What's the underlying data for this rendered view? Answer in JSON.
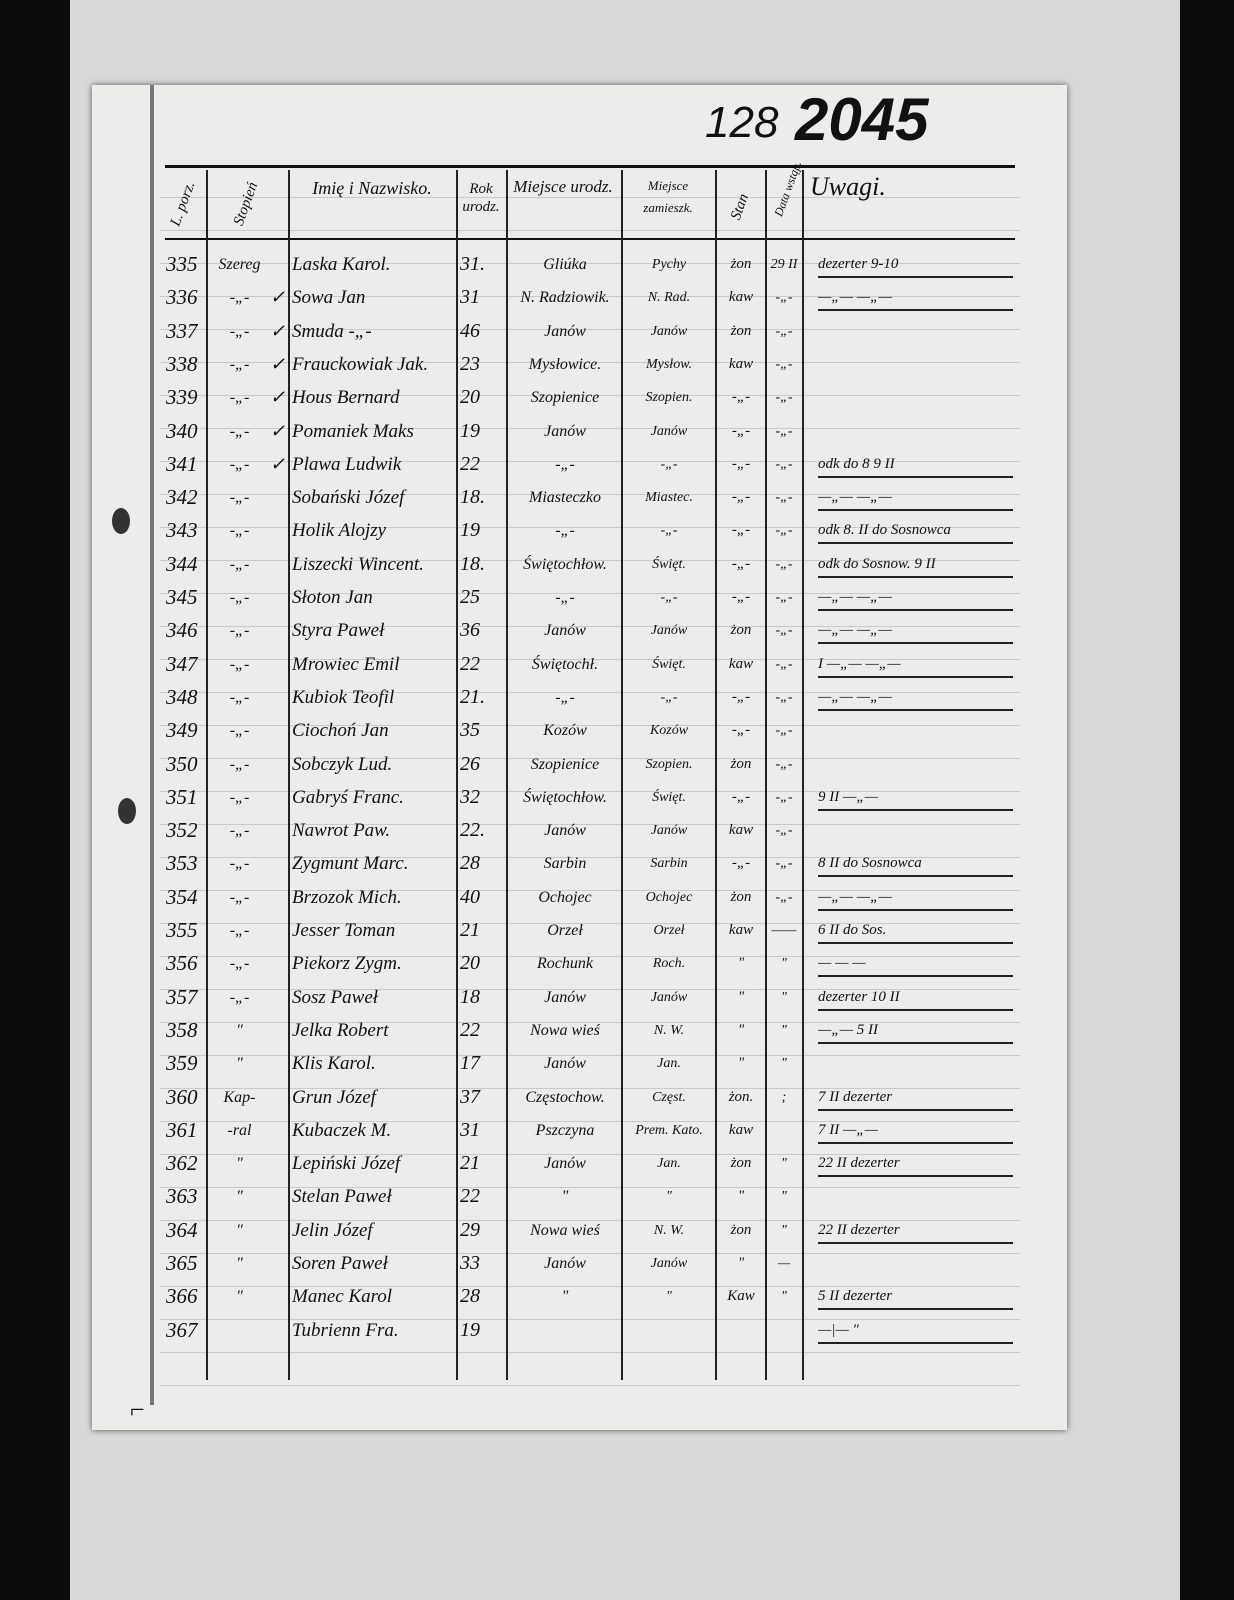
{
  "page_numbers": {
    "folio": "128",
    "stamp": "2045"
  },
  "headers": {
    "number": "L. porz.",
    "rank": "Stopień",
    "name": "Imię i Nazwisko.",
    "year": "Rok urodz.",
    "birthplace": "Miejsce urodz.",
    "residence": "Miejsce zamieszk.",
    "status": "Stan",
    "date": "Data wstąp.",
    "remarks": "Uwagi."
  },
  "rows": [
    {
      "num": "335",
      "rank": "Szereg",
      "mark": "",
      "name": "Laska Karol.",
      "year": "31.",
      "birth": "Gliúka",
      "res": "Pychy",
      "stat": "żon",
      "date": "29 II",
      "rem": "dezerter 9-10"
    },
    {
      "num": "336",
      "rank": "-„-",
      "mark": "✓",
      "name": "Sowa Jan",
      "year": "31",
      "birth": "N. Radziowik.",
      "res": "N. Rad.",
      "stat": "kaw",
      "date": "-„-",
      "rem": "—„— —„—"
    },
    {
      "num": "337",
      "rank": "-„-",
      "mark": "✓",
      "name": "Smuda -„-",
      "year": "46",
      "birth": "Janów",
      "res": "Janów",
      "stat": "żon",
      "date": "-„-",
      "rem": ""
    },
    {
      "num": "338",
      "rank": "-„-",
      "mark": "✓",
      "name": "Frauckowiak Jak.",
      "year": "23",
      "birth": "Mysłowice.",
      "res": "Mysłow.",
      "stat": "kaw",
      "date": "-„-",
      "rem": ""
    },
    {
      "num": "339",
      "rank": "-„-",
      "mark": "✓",
      "name": "Hous Bernard",
      "year": "20",
      "birth": "Szopienice",
      "res": "Szopien.",
      "stat": "-„-",
      "date": "-„-",
      "rem": ""
    },
    {
      "num": "340",
      "rank": "-„-",
      "mark": "✓",
      "name": "Pomaniek Maks",
      "year": "19",
      "birth": "Janów",
      "res": "Janów",
      "stat": "-„-",
      "date": "-„-",
      "rem": ""
    },
    {
      "num": "341",
      "rank": "-„-",
      "mark": "✓",
      "name": "Plawa Ludwik",
      "year": "22",
      "birth": "-„-",
      "res": "-„-",
      "stat": "-„-",
      "date": "-„-",
      "rem": "odk do 8 9 II"
    },
    {
      "num": "342",
      "rank": "-„-",
      "mark": "",
      "name": "Sobański Józef",
      "year": "18.",
      "birth": "Miasteczko",
      "res": "Miastec.",
      "stat": "-„-",
      "date": "-„-",
      "rem": "—„— —„—"
    },
    {
      "num": "343",
      "rank": "-„-",
      "mark": "",
      "name": "Holik Alojzy",
      "year": "19",
      "birth": "-„-",
      "res": "-„-",
      "stat": "-„-",
      "date": "-„-",
      "rem": "odk 8. II do Sosnowca"
    },
    {
      "num": "344",
      "rank": "-„-",
      "mark": "",
      "name": "Liszecki Wincent.",
      "year": "18.",
      "birth": "Świętochłow.",
      "res": "Święt.",
      "stat": "-„-",
      "date": "-„-",
      "rem": "odk do Sosnow. 9 II"
    },
    {
      "num": "345",
      "rank": "-„-",
      "mark": "",
      "name": "Słoton Jan",
      "year": "25",
      "birth": "-„-",
      "res": "-„-",
      "stat": "-„-",
      "date": "-„-",
      "rem": "—„— —„—"
    },
    {
      "num": "346",
      "rank": "-„-",
      "mark": "",
      "name": "Styra Paweł",
      "year": "36",
      "birth": "Janów",
      "res": "Janów",
      "stat": "żon",
      "date": "-„-",
      "rem": "—„— —„—"
    },
    {
      "num": "347",
      "rank": "-„-",
      "mark": "",
      "name": "Mrowiec Emil",
      "year": "22",
      "birth": "Świętochł.",
      "res": "Święt.",
      "stat": "kaw",
      "date": "-„-",
      "rem": "I —„— —„—"
    },
    {
      "num": "348",
      "rank": "-„-",
      "mark": "",
      "name": "Kubiok Teofil",
      "year": "21.",
      "birth": "-„-",
      "res": "-„-",
      "stat": "-„-",
      "date": "-„-",
      "rem": "—„— —„—"
    },
    {
      "num": "349",
      "rank": "-„-",
      "mark": "",
      "name": "Ciochoń Jan",
      "year": "35",
      "birth": "Kozów",
      "res": "Kozów",
      "stat": "-„-",
      "date": "-„-",
      "rem": ""
    },
    {
      "num": "350",
      "rank": "-„-",
      "mark": "",
      "name": "Sobczyk Lud.",
      "year": "26",
      "birth": "Szopienice",
      "res": "Szopien.",
      "stat": "żon",
      "date": "-„-",
      "rem": ""
    },
    {
      "num": "351",
      "rank": "-„-",
      "mark": "",
      "name": "Gabryś Franc.",
      "year": "32",
      "birth": "Świętochłow.",
      "res": "Święt.",
      "stat": "-„-",
      "date": "-„-",
      "rem": "9 II —„—"
    },
    {
      "num": "352",
      "rank": "-„-",
      "mark": "",
      "name": "Nawrot Paw.",
      "year": "22.",
      "birth": "Janów",
      "res": "Janów",
      "stat": "kaw",
      "date": "-„-",
      "rem": ""
    },
    {
      "num": "353",
      "rank": "-„-",
      "mark": "",
      "name": "Zygmunt Marc.",
      "year": "28",
      "birth": "Sarbin",
      "res": "Sarbin",
      "stat": "-„-",
      "date": "-„-",
      "rem": "8 II do Sosnowca"
    },
    {
      "num": "354",
      "rank": "-„-",
      "mark": "",
      "name": "Brzozok Mich.",
      "year": "40",
      "birth": "Ochojec",
      "res": "Ochojec",
      "stat": "żon",
      "date": "-„-",
      "rem": "—„— —„—"
    },
    {
      "num": "355",
      "rank": "-„-",
      "mark": "",
      "name": "Jesser Toman",
      "year": "21",
      "birth": "Orzeł",
      "res": "Orzeł",
      "stat": "kaw",
      "date": "——",
      "rem": "6 II do Sos."
    },
    {
      "num": "356",
      "rank": "-„-",
      "mark": "",
      "name": "Piekorz Zygm.",
      "year": "20",
      "birth": "Rochunk",
      "res": "Roch.",
      "stat": "\"",
      "date": "\"",
      "rem": "— — —"
    },
    {
      "num": "357",
      "rank": "-„-",
      "mark": "",
      "name": "Sosz Paweł",
      "year": "18",
      "birth": "Janów",
      "res": "Janów",
      "stat": "\"",
      "date": "\"",
      "rem": "dezerter 10 II"
    },
    {
      "num": "358",
      "rank": "\"",
      "mark": "",
      "name": "Jelka Robert",
      "year": "22",
      "birth": "Nowa wieś",
      "res": "N. W.",
      "stat": "\"",
      "date": "\"",
      "rem": "—„— 5 II"
    },
    {
      "num": "359",
      "rank": "\"",
      "mark": "",
      "name": "Klis Karol.",
      "year": "17",
      "birth": "Janów",
      "res": "Jan.",
      "stat": "\"",
      "date": "\"",
      "rem": ""
    },
    {
      "num": "360",
      "rank": "Kap-",
      "mark": "",
      "name": "Grun Józef",
      "year": "37",
      "birth": "Częstochow.",
      "res": "Częst.",
      "stat": "żon.",
      "date": ";",
      "rem": "7 II dezerter"
    },
    {
      "num": "361",
      "rank": "-ral",
      "mark": "",
      "name": "Kubaczek M.",
      "year": "31",
      "birth": "Pszczyna",
      "res": "Prem. Kato.",
      "stat": "kaw",
      "date": "",
      "rem": "7 II —„—"
    },
    {
      "num": "362",
      "rank": "\"",
      "mark": "",
      "name": "Lepiński Józef",
      "year": "21",
      "birth": "Janów",
      "res": "Jan.",
      "stat": "żon",
      "date": "\"",
      "rem": "22 II dezerter"
    },
    {
      "num": "363",
      "rank": "\"",
      "mark": "",
      "name": "Stelan Paweł",
      "year": "22",
      "birth": "\"",
      "res": "\"",
      "stat": "\"",
      "date": "\"",
      "rem": ""
    },
    {
      "num": "364",
      "rank": "\"",
      "mark": "",
      "name": "Jelin Józef",
      "year": "29",
      "birth": "Nowa wieś",
      "res": "N. W.",
      "stat": "żon",
      "date": "\"",
      "rem": "22 II dezerter"
    },
    {
      "num": "365",
      "rank": "\"",
      "mark": "",
      "name": "Soren Paweł",
      "year": "33",
      "birth": "Janów",
      "res": "Janów",
      "stat": "\"",
      "date": "—",
      "rem": ""
    },
    {
      "num": "366",
      "rank": "\"",
      "mark": "",
      "name": "Manec Karol",
      "year": "28",
      "birth": "\"",
      "res": "\"",
      "stat": "Kaw",
      "date": "\"",
      "rem": "5 II dezerter"
    },
    {
      "num": "367",
      "rank": "",
      "mark": "",
      "name": "Tubrienn Fra.",
      "year": "19",
      "birth": "",
      "res": "",
      "stat": "",
      "date": "",
      "rem": "—|— \""
    }
  ]
}
